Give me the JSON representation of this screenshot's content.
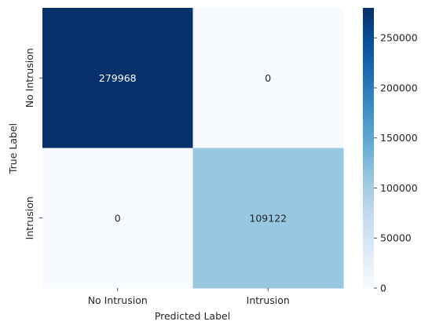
{
  "chart_data": {
    "type": "heatmap",
    "title": "",
    "xlabel": "Predicted Label",
    "ylabel": "True Label",
    "x_categories": [
      "No Intrusion",
      "Intrusion"
    ],
    "y_categories": [
      "No Intrusion",
      "Intrusion"
    ],
    "values": [
      [
        279968,
        0
      ],
      [
        0,
        109122
      ]
    ],
    "colormap": "Blues",
    "colorbar": {
      "min": 0,
      "max": 279968,
      "ticks": [
        0,
        50000,
        100000,
        150000,
        200000,
        250000
      ],
      "tick_labels": [
        "0",
        "50000",
        "100000",
        "150000",
        "200000",
        "250000"
      ]
    },
    "colors": {
      "dark_text": "#262626",
      "light_text": "#ffffff"
    }
  }
}
